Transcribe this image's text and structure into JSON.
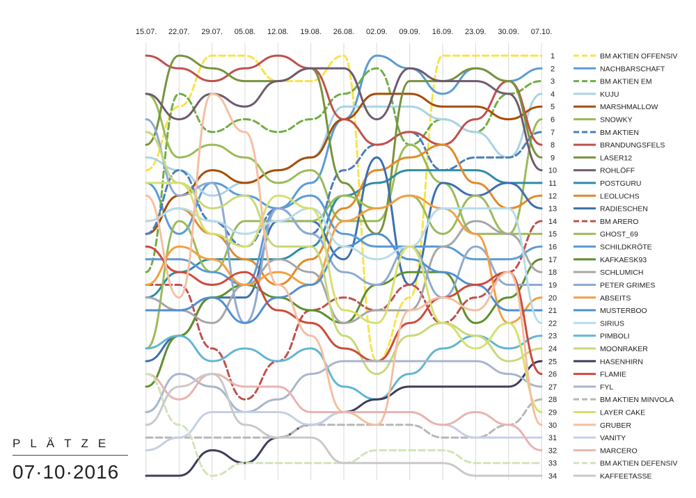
{
  "panel": {
    "title": "PLÄTZE",
    "date": "07·10·2016"
  },
  "chart_data": {
    "type": "line",
    "x": [
      "15.07.",
      "22.07.",
      "29.07.",
      "05.08.",
      "12.08.",
      "19.08.",
      "26.08.",
      "02.09.",
      "09.09.",
      "16.09.",
      "23.09.",
      "30.09.",
      "07.10."
    ],
    "ranks": [
      1,
      2,
      3,
      4,
      5,
      6,
      7,
      8,
      9,
      10,
      11,
      12,
      13,
      14,
      15,
      16,
      17,
      18,
      19,
      20,
      21,
      22,
      23,
      24,
      25,
      26,
      27,
      28,
      29,
      30,
      31,
      32,
      33,
      34
    ],
    "ylim": [
      1,
      34
    ],
    "y_inverted": true,
    "grid": "vertical",
    "legend": "right",
    "series": [
      {
        "name": "BM AKTIEN OFFENSIV",
        "color": "#f7e34a",
        "dash": true,
        "values": [
          10,
          5,
          1,
          1,
          3,
          3,
          1,
          25,
          20,
          1,
          1,
          1,
          1
        ]
      },
      {
        "name": "NACHBARSCHAFT",
        "color": "#5b9bd5",
        "dash": false,
        "values": [
          11,
          15,
          11,
          12,
          13,
          11,
          6,
          1,
          2,
          4,
          2,
          3,
          2
        ]
      },
      {
        "name": "BM AKTIEN EM",
        "color": "#70ad47",
        "dash": true,
        "values": [
          18,
          4,
          7,
          6,
          7,
          6,
          4,
          2,
          8,
          6,
          7,
          4,
          3
        ]
      },
      {
        "name": "KUJU",
        "color": "#a9d4e6",
        "dash": false,
        "values": [
          9,
          10,
          12,
          11,
          10,
          9,
          5,
          5,
          5,
          6,
          7,
          9,
          4
        ]
      },
      {
        "name": "MARSHMALLOW",
        "color": "#a64d00",
        "dash": false,
        "values": [
          15,
          12,
          10,
          11,
          10,
          9,
          6,
          4,
          4,
          5,
          5,
          6,
          5
        ]
      },
      {
        "name": "SNOWKY",
        "color": "#9bbb59",
        "dash": false,
        "values": [
          4,
          9,
          8,
          9,
          11,
          10,
          14,
          14,
          8,
          11,
          15,
          15,
          6
        ]
      },
      {
        "name": "BM AKTIEN",
        "color": "#4a7ebb",
        "dash": true,
        "values": [
          15,
          10,
          14,
          16,
          13,
          15,
          10,
          8,
          7,
          10,
          9,
          9,
          7
        ]
      },
      {
        "name": "BRANDUNGSFELS",
        "color": "#c0504d",
        "dash": false,
        "values": [
          1,
          2,
          3,
          2,
          1,
          2,
          6,
          8,
          7,
          8,
          6,
          3,
          8
        ]
      },
      {
        "name": "LASER12",
        "color": "#77933c",
        "dash": false,
        "values": [
          8,
          1,
          2,
          3,
          3,
          2,
          11,
          15,
          3,
          3,
          2,
          3,
          9
        ]
      },
      {
        "name": "ROHLÖFF",
        "color": "#6e5a6e",
        "dash": false,
        "values": [
          4,
          6,
          4,
          5,
          3,
          2,
          2,
          6,
          2,
          3,
          3,
          4,
          10
        ]
      },
      {
        "name": "POSTGURU",
        "color": "#2e8ba3",
        "dash": false,
        "values": [
          20,
          18,
          17,
          17,
          17,
          16,
          12,
          11,
          10,
          10,
          10,
          11,
          11
        ]
      },
      {
        "name": "LEOLUCHS",
        "color": "#e28a2b",
        "dash": false,
        "values": [
          14,
          13,
          15,
          17,
          19,
          17,
          13,
          10,
          9,
          8,
          11,
          13,
          12
        ]
      },
      {
        "name": "RADIESCHEN",
        "color": "#3d6eb0",
        "dash": false,
        "values": [
          25,
          23,
          20,
          20,
          14,
          14,
          17,
          9,
          19,
          11,
          12,
          11,
          13
        ]
      },
      {
        "name": "BM ARERO",
        "color": "#c0504d",
        "dash": true,
        "values": [
          19,
          19,
          24,
          28,
          25,
          21,
          20,
          21,
          19,
          22,
          20,
          18,
          14
        ]
      },
      {
        "name": "GHOST_69",
        "color": "#9bbb59",
        "dash": false,
        "values": [
          24,
          14,
          18,
          14,
          14,
          14,
          12,
          13,
          12,
          15,
          12,
          15,
          15
        ]
      },
      {
        "name": "SCHILDKRÖTE",
        "color": "#5b9bd5",
        "dash": false,
        "values": [
          17,
          17,
          18,
          19,
          13,
          12,
          15,
          16,
          16,
          16,
          17,
          17,
          16
        ]
      },
      {
        "name": "KAFKAESK93",
        "color": "#5f8f2b",
        "dash": false,
        "values": [
          27,
          23,
          20,
          19,
          20,
          21,
          22,
          19,
          18,
          18,
          22,
          20,
          17
        ]
      },
      {
        "name": "SCHLUMICH",
        "color": "#a6a6a6",
        "dash": false,
        "values": [
          20,
          21,
          22,
          19,
          17,
          18,
          22,
          21,
          21,
          16,
          14,
          15,
          18
        ]
      },
      {
        "name": "PETER GRIMES",
        "color": "#8eaad3",
        "dash": false,
        "values": [
          6,
          12,
          11,
          22,
          13,
          15,
          18,
          19,
          16,
          20,
          16,
          19,
          19
        ]
      },
      {
        "name": "ABSEITS",
        "color": "#f2a043",
        "dash": false,
        "values": [
          19,
          16,
          17,
          19,
          18,
          19,
          14,
          13,
          12,
          13,
          15,
          22,
          20
        ]
      },
      {
        "name": "MUSTERBOO",
        "color": "#4f8fd1",
        "dash": false,
        "values": [
          21,
          21,
          20,
          22,
          20,
          19,
          16,
          15,
          17,
          18,
          19,
          21,
          21
        ]
      },
      {
        "name": "SIRIUS",
        "color": "#b7dce8",
        "dash": false,
        "values": [
          14,
          13,
          14,
          15,
          14,
          13,
          16,
          17,
          16,
          13,
          13,
          13,
          22
        ]
      },
      {
        "name": "PIMBOLI",
        "color": "#61b6d3",
        "dash": false,
        "values": [
          24,
          23,
          25,
          24,
          25,
          24,
          27,
          28,
          26,
          24,
          23,
          24,
          23
        ]
      },
      {
        "name": "MOONRAKER",
        "color": "#c9d87a",
        "dash": false,
        "values": [
          7,
          11,
          13,
          12,
          16,
          16,
          23,
          26,
          23,
          22,
          23,
          25,
          24
        ]
      },
      {
        "name": "HASENHIRN",
        "color": "#3d3d5c",
        "dash": false,
        "values": [
          34,
          34,
          32,
          33,
          31,
          30,
          29,
          28,
          27,
          27,
          27,
          27,
          25
        ]
      },
      {
        "name": "FLAMIE",
        "color": "#cc4c3b",
        "dash": false,
        "values": [
          16,
          18,
          19,
          18,
          21,
          22,
          24,
          25,
          22,
          20,
          19,
          18,
          26
        ]
      },
      {
        "name": "FYL",
        "color": "#a8b6cc",
        "dash": false,
        "values": [
          29,
          26,
          27,
          29,
          28,
          26,
          25,
          25,
          25,
          25,
          25,
          26,
          27
        ]
      },
      {
        "name": "BM AKTIEN MINVOLA",
        "color": "#b7b7b7",
        "dash": true,
        "values": [
          31,
          31,
          31,
          31,
          31,
          30,
          30,
          30,
          30,
          31,
          31,
          30,
          28
        ]
      },
      {
        "name": "LAYER CAKE",
        "color": "#d5e06f",
        "dash": false,
        "values": [
          11,
          11,
          15,
          16,
          12,
          13,
          21,
          22,
          16,
          22,
          24,
          22,
          29
        ]
      },
      {
        "name": "GRUBER",
        "color": "#f5bfa0",
        "dash": false,
        "values": [
          12,
          20,
          4,
          7,
          19,
          23,
          29,
          30,
          21,
          20,
          21,
          18,
          30
        ]
      },
      {
        "name": "VANITY",
        "color": "#c5cfe6",
        "dash": false,
        "values": [
          32,
          31,
          29,
          29,
          29,
          30,
          29,
          29,
          29,
          30,
          31,
          31,
          31
        ]
      },
      {
        "name": "MARCERO",
        "color": "#e8b4b0",
        "dash": false,
        "values": [
          26,
          28,
          26,
          27,
          27,
          29,
          29,
          29,
          29,
          30,
          29,
          30,
          32
        ]
      },
      {
        "name": "BM AKTIEN DEFENSIV",
        "color": "#d3e3b8",
        "dash": true,
        "values": [
          26,
          30,
          34,
          33,
          33,
          33,
          33,
          32,
          32,
          32,
          33,
          33,
          33
        ]
      },
      {
        "name": "KAFFEETASSE",
        "color": "#c9c9c9",
        "dash": false,
        "values": [
          30,
          27,
          26,
          30,
          31,
          31,
          33,
          33,
          33,
          33,
          34,
          34,
          34
        ]
      }
    ]
  }
}
